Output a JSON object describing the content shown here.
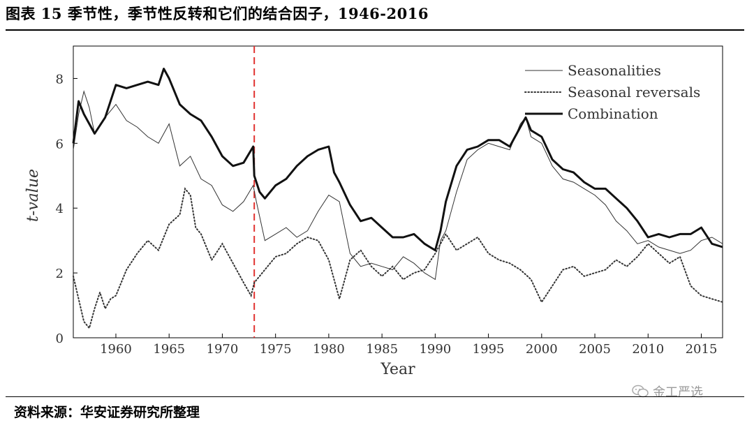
{
  "header": {
    "figure_title": "图表 15  季节性，季节性反转和它们的结合因子，1946-2016"
  },
  "footer": {
    "source": "资料来源：华安证券研究所整理",
    "watermark": "金工严选"
  },
  "chart_data": {
    "type": "line",
    "xlabel": "Year",
    "ylabel": "t-value",
    "xlim": [
      1956,
      2017
    ],
    "ylim": [
      0,
      9
    ],
    "xticks": [
      1960,
      1965,
      1970,
      1975,
      1980,
      1985,
      1990,
      1995,
      2000,
      2005,
      2010,
      2015
    ],
    "yticks": [
      0,
      2,
      4,
      6,
      8
    ],
    "legend_position": "top-right",
    "vline": {
      "x": 1973,
      "color": "#e0312f",
      "style": "dashed"
    },
    "series": [
      {
        "name": "Seasonalities",
        "style": "thin",
        "x": [
          1956,
          1956.5,
          1957,
          1957.5,
          1958,
          1959,
          1960,
          1961,
          1962,
          1963,
          1964,
          1965,
          1966,
          1967,
          1968,
          1969,
          1970,
          1971,
          1972,
          1972.9,
          1973.2,
          1974,
          1975,
          1976,
          1977,
          1978,
          1979,
          1980,
          1981,
          1982,
          1983,
          1984,
          1985,
          1986,
          1987,
          1988,
          1989,
          1990,
          1990.5,
          1991,
          1992,
          1993,
          1994,
          1995,
          1996,
          1997,
          1998,
          1998.5,
          1999,
          2000,
          2001,
          2002,
          2003,
          2004,
          2005,
          2006,
          2007,
          2008,
          2009,
          2010,
          2011,
          2012,
          2013,
          2014,
          2015,
          2016,
          2017
        ],
        "y": [
          5.8,
          6.9,
          7.6,
          7.1,
          6.3,
          6.8,
          7.2,
          6.7,
          6.5,
          6.2,
          6.0,
          6.6,
          5.3,
          5.6,
          4.9,
          4.7,
          4.1,
          3.9,
          4.2,
          4.7,
          4.2,
          3.0,
          3.2,
          3.4,
          3.1,
          3.3,
          3.9,
          4.4,
          4.2,
          2.6,
          2.2,
          2.3,
          2.2,
          2.1,
          2.5,
          2.3,
          2.0,
          1.8,
          3.0,
          3.3,
          4.5,
          5.5,
          5.8,
          6.0,
          5.9,
          5.8,
          6.6,
          6.8,
          6.2,
          6.0,
          5.3,
          4.9,
          4.8,
          4.6,
          4.4,
          4.1,
          3.6,
          3.3,
          2.9,
          3.0,
          2.8,
          2.7,
          2.6,
          2.7,
          3.0,
          3.1,
          2.9
        ]
      },
      {
        "name": "Seasonal reversals",
        "style": "dotted",
        "x": [
          1956,
          1956.5,
          1957,
          1957.5,
          1958,
          1958.5,
          1959,
          1959.5,
          1960,
          1961,
          1962,
          1963,
          1964,
          1965,
          1966,
          1966.5,
          1967,
          1967.5,
          1968,
          1968.5,
          1969,
          1970,
          1971,
          1972,
          1972.7,
          1973,
          1974,
          1975,
          1976,
          1977,
          1978,
          1979,
          1980,
          1981,
          1981.5,
          1982,
          1983,
          1984,
          1985,
          1986,
          1987,
          1988,
          1989,
          1990,
          1991,
          1992,
          1993,
          1994,
          1995,
          1996,
          1997,
          1998,
          1999,
          2000,
          2001,
          2002,
          2003,
          2004,
          2005,
          2006,
          2007,
          2008,
          2009,
          2010,
          2011,
          2012,
          2013,
          2014,
          2015,
          2016,
          2017
        ],
        "y": [
          1.9,
          1.2,
          0.5,
          0.3,
          0.9,
          1.4,
          0.9,
          1.2,
          1.3,
          2.1,
          2.6,
          3.0,
          2.7,
          3.5,
          3.8,
          4.6,
          4.4,
          3.4,
          3.2,
          2.8,
          2.4,
          2.9,
          2.3,
          1.7,
          1.3,
          1.7,
          2.1,
          2.5,
          2.6,
          2.9,
          3.1,
          3.0,
          2.4,
          1.2,
          1.8,
          2.4,
          2.7,
          2.2,
          1.9,
          2.2,
          1.8,
          2.0,
          2.1,
          2.6,
          3.2,
          2.7,
          2.9,
          3.1,
          2.6,
          2.4,
          2.3,
          2.1,
          1.8,
          1.1,
          1.6,
          2.1,
          2.2,
          1.9,
          2.0,
          2.1,
          2.4,
          2.2,
          2.5,
          2.9,
          2.6,
          2.3,
          2.5,
          1.6,
          1.3,
          1.2,
          1.1
        ]
      },
      {
        "name": "Combination",
        "style": "thick",
        "x": [
          1956,
          1956.5,
          1957,
          1957.5,
          1958,
          1959,
          1960,
          1961,
          1962,
          1963,
          1964,
          1964.5,
          1965,
          1966,
          1967,
          1968,
          1969,
          1970,
          1971,
          1972,
          1972.9,
          1973,
          1973.5,
          1974,
          1975,
          1976,
          1977,
          1978,
          1979,
          1980,
          1980.5,
          1981,
          1982,
          1983,
          1984,
          1985,
          1986,
          1987,
          1988,
          1989,
          1989.5,
          1990,
          1990.5,
          1991,
          1992,
          1993,
          1994,
          1995,
          1996,
          1997,
          1998,
          1998.5,
          1999,
          2000,
          2001,
          2002,
          2003,
          2004,
          2005,
          2006,
          2007,
          2008,
          2009,
          2010,
          2011,
          2012,
          2013,
          2014,
          2015,
          2016,
          2017
        ],
        "y": [
          6.0,
          7.3,
          6.9,
          6.6,
          6.3,
          6.8,
          7.8,
          7.7,
          7.8,
          7.9,
          7.8,
          8.3,
          8.0,
          7.2,
          6.9,
          6.7,
          6.2,
          5.6,
          5.3,
          5.4,
          5.9,
          5.0,
          4.5,
          4.3,
          4.7,
          4.9,
          5.3,
          5.6,
          5.8,
          5.9,
          5.1,
          4.8,
          4.1,
          3.6,
          3.7,
          3.4,
          3.1,
          3.1,
          3.2,
          2.9,
          2.8,
          2.7,
          3.3,
          4.2,
          5.3,
          5.8,
          5.9,
          6.1,
          6.1,
          5.9,
          6.5,
          6.8,
          6.4,
          6.2,
          5.5,
          5.2,
          5.1,
          4.8,
          4.6,
          4.6,
          4.3,
          4.0,
          3.6,
          3.1,
          3.2,
          3.1,
          3.2,
          3.2,
          3.4,
          2.9,
          2.8
        ]
      }
    ]
  }
}
